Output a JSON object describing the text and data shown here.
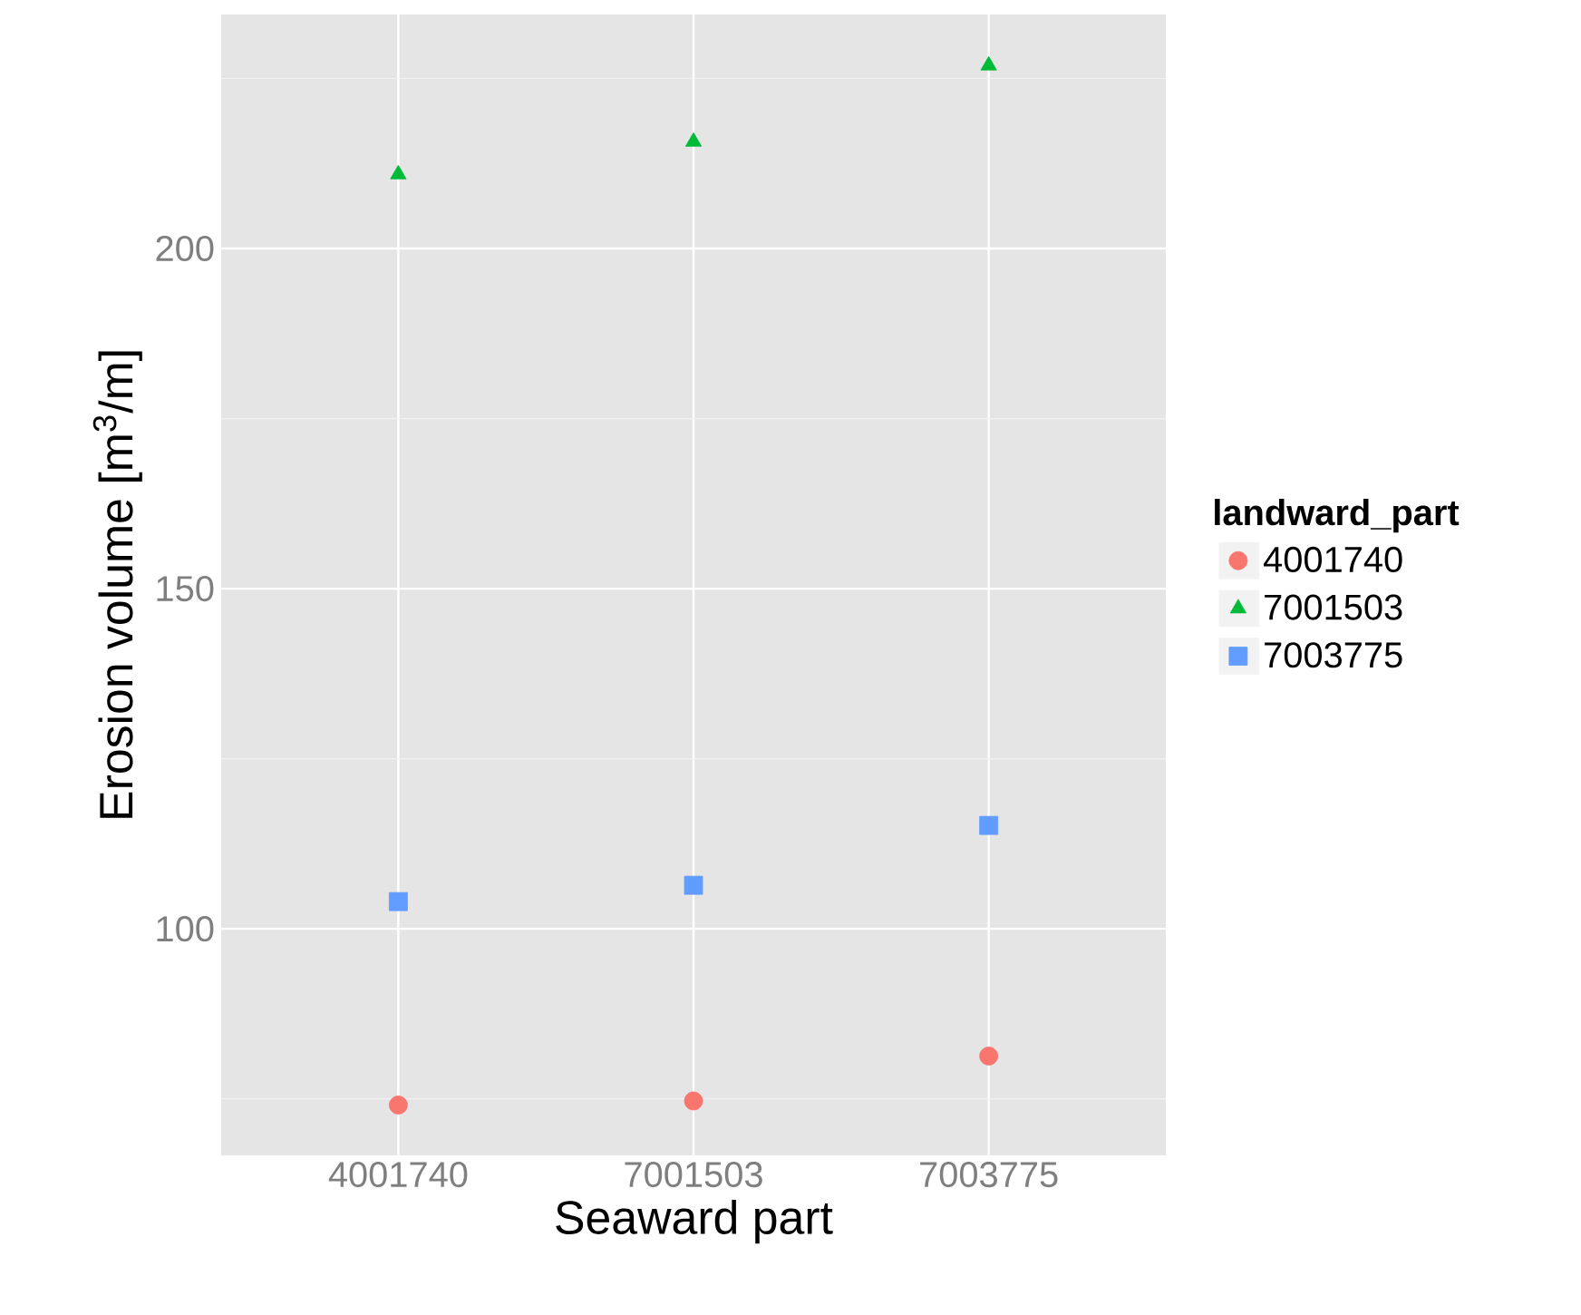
{
  "chart_data": {
    "type": "scatter",
    "xlabel": "Seaward part",
    "ylabel": "Erosion volume [m$^{3}$/m]",
    "legend_title": "landward_part",
    "categories": [
      "4001740",
      "7001503",
      "7003775"
    ],
    "series": [
      {
        "name": "4001740",
        "color": "#F8766D",
        "marker": "circle",
        "values": [
          74.1,
          74.7,
          81.3
        ]
      },
      {
        "name": "7001503",
        "color": "#00BA38",
        "marker": "triangle",
        "values": [
          210.9,
          215.7,
          226.9
        ]
      },
      {
        "name": "7003775",
        "color": "#619CFF",
        "marker": "square",
        "values": [
          104,
          106.4,
          115.2
        ]
      }
    ],
    "ylim": [
      66.7,
      234.4
    ],
    "yticks": [
      100,
      150,
      200
    ],
    "grid": true,
    "legend": "right"
  }
}
